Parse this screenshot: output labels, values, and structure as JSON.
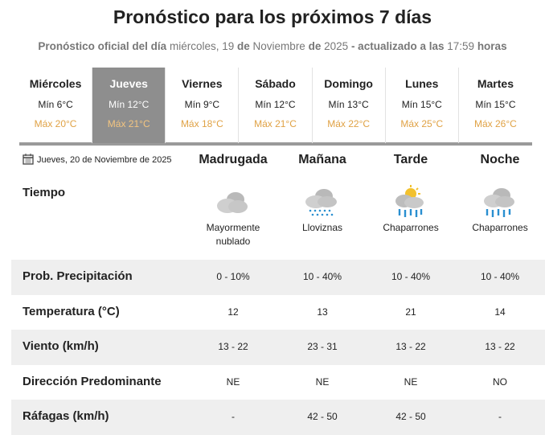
{
  "header": {
    "title": "Pronóstico para los próximos 7 días",
    "subtitle": [
      "Pronóstico oficial del día",
      "miércoles, 19",
      "de",
      "Noviembre",
      "de",
      "2025",
      "- actualizado a las",
      "17:59",
      "horas"
    ]
  },
  "days": [
    {
      "name": "Miércoles",
      "min": "Mín 6°C",
      "max": "Máx 20°C"
    },
    {
      "name": "Jueves",
      "min": "Mín 12°C",
      "max": "Máx 21°C"
    },
    {
      "name": "Viernes",
      "min": "Mín 9°C",
      "max": "Máx 18°C"
    },
    {
      "name": "Sábado",
      "min": "Mín 12°C",
      "max": "Máx 21°C"
    },
    {
      "name": "Domingo",
      "min": "Mín 13°C",
      "max": "Máx 22°C"
    },
    {
      "name": "Lunes",
      "min": "Mín 15°C",
      "max": "Máx 25°C"
    },
    {
      "name": "Martes",
      "min": "Mín 15°C",
      "max": "Máx 26°C"
    }
  ],
  "selected_day": 1,
  "detail": {
    "date": "Jueves, 20 de Noviembre de 2025",
    "periods": [
      "Madrugada",
      "Mañana",
      "Tarde",
      "Noche"
    ],
    "sky_label": "Tiempo",
    "sky": [
      "Mayormente nublado",
      "Lloviznas",
      "Chaparrones",
      "Chaparrones"
    ],
    "rows": [
      {
        "label": "Prob. Precipitación",
        "values": [
          "0 - 10%",
          "10 - 40%",
          "10 - 40%",
          "10 - 40%"
        ]
      },
      {
        "label": "Temperatura (°C)",
        "values": [
          "12",
          "13",
          "21",
          "14"
        ]
      },
      {
        "label": "Viento (km/h)",
        "values": [
          "13 - 22",
          "23 - 31",
          "13 - 22",
          "13 - 22"
        ]
      },
      {
        "label": "Dirección Predominante",
        "values": [
          "NE",
          "NE",
          "NE",
          "NO"
        ]
      },
      {
        "label": "Ráfagas (km/h)",
        "values": [
          "-",
          "42 - 50",
          "42 - 50",
          "-"
        ]
      }
    ]
  }
}
